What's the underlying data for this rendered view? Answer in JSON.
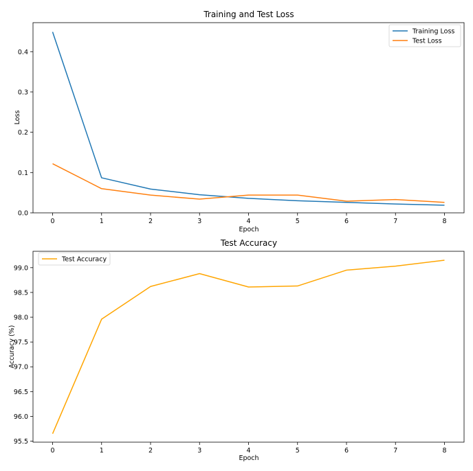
{
  "chart_data": [
    {
      "type": "line",
      "title": "Training and Test Loss",
      "xlabel": "Epoch",
      "ylabel": "Loss",
      "x": [
        0,
        1,
        2,
        3,
        4,
        5,
        6,
        7,
        8
      ],
      "xlim": [
        -0.4,
        8.4
      ],
      "ylim": [
        0,
        0.472
      ],
      "xticks": [
        "0",
        "1",
        "2",
        "3",
        "4",
        "5",
        "6",
        "7",
        "8"
      ],
      "yticks": [
        "0.0",
        "0.1",
        "0.2",
        "0.3",
        "0.4"
      ],
      "grid": false,
      "legend_position": "top-right",
      "series": [
        {
          "name": "Training Loss",
          "color": "#1f77b4",
          "values": [
            0.449,
            0.087,
            0.059,
            0.045,
            0.036,
            0.03,
            0.026,
            0.022,
            0.019
          ]
        },
        {
          "name": "Test Loss",
          "color": "#ff7f0e",
          "values": [
            0.122,
            0.06,
            0.044,
            0.034,
            0.044,
            0.044,
            0.029,
            0.033,
            0.026
          ]
        }
      ]
    },
    {
      "type": "line",
      "title": "Test Accuracy",
      "xlabel": "Epoch",
      "ylabel": "Accuracy (%)",
      "x": [
        0,
        1,
        2,
        3,
        4,
        5,
        6,
        7,
        8
      ],
      "xlim": [
        -0.4,
        8.4
      ],
      "ylim": [
        95.48,
        99.33
      ],
      "xticks": [
        "0",
        "1",
        "2",
        "3",
        "4",
        "5",
        "6",
        "7",
        "8"
      ],
      "yticks": [
        "95.5",
        "96.0",
        "96.5",
        "97.0",
        "97.5",
        "98.0",
        "98.5",
        "99.0"
      ],
      "grid": false,
      "legend_position": "top-left",
      "series": [
        {
          "name": "Test Accuracy",
          "color": "#ffa500",
          "values": [
            95.65,
            97.96,
            98.62,
            98.88,
            98.61,
            98.63,
            98.95,
            99.03,
            99.15
          ]
        }
      ]
    }
  ]
}
